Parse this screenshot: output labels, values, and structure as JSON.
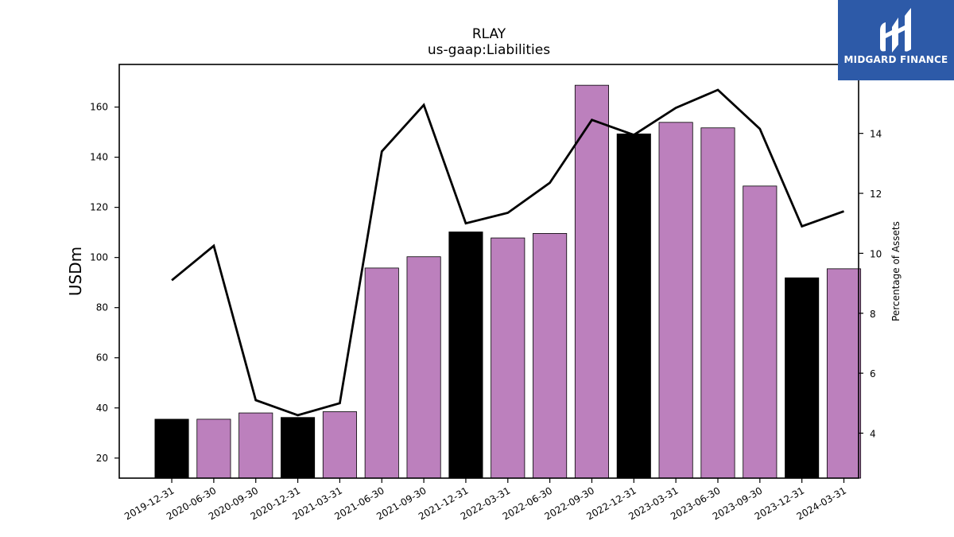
{
  "chart_data": {
    "type": "bar",
    "title": "RLAY",
    "subtitle": "us-gaap:Liabilities",
    "ylabel": "USDm",
    "ylabel_right": "Percentage of Assets",
    "categories": [
      "2019-12-31",
      "2020-06-30",
      "2020-09-30",
      "2020-12-31",
      "2021-03-31",
      "2021-06-30",
      "2021-09-30",
      "2021-12-31",
      "2022-03-31",
      "2022-06-30",
      "2022-09-30",
      "2022-12-31",
      "2023-03-31",
      "2023-06-30",
      "2023-09-30",
      "2023-12-31",
      "2024-03-31"
    ],
    "series": [
      {
        "axis": "left",
        "kind": "bar",
        "values": [
          35.5,
          35.5,
          38.0,
          36.2,
          38.5,
          95.8,
          100.3,
          110.2,
          107.8,
          109.6,
          168.7,
          149.3,
          153.9,
          151.7,
          128.5,
          91.9,
          95.5
        ]
      },
      {
        "axis": "right",
        "kind": "line",
        "values": [
          9.1,
          10.25,
          5.1,
          4.6,
          5.0,
          13.4,
          14.95,
          11.0,
          11.35,
          12.35,
          14.45,
          13.95,
          14.85,
          15.45,
          14.15,
          10.9,
          11.4
        ]
      }
    ],
    "bar_colors": {
      "default": "#bc80bd",
      "year_end": "#000000"
    },
    "year_end_indices": [
      0,
      3,
      7,
      11,
      15
    ],
    "line_color": "#000000",
    "ylim": [
      12,
      177
    ],
    "ylim_right": [
      2.5,
      16.3
    ],
    "yticks": [
      20,
      40,
      60,
      80,
      100,
      120,
      140,
      160
    ],
    "yticks_right": [
      4,
      6,
      8,
      10,
      12,
      14
    ],
    "grid": false,
    "legend": "none"
  },
  "logo": {
    "text": "MIDGARD FINANCE",
    "icon": "midgard-logo-icon",
    "background": "#2d5aa8"
  }
}
